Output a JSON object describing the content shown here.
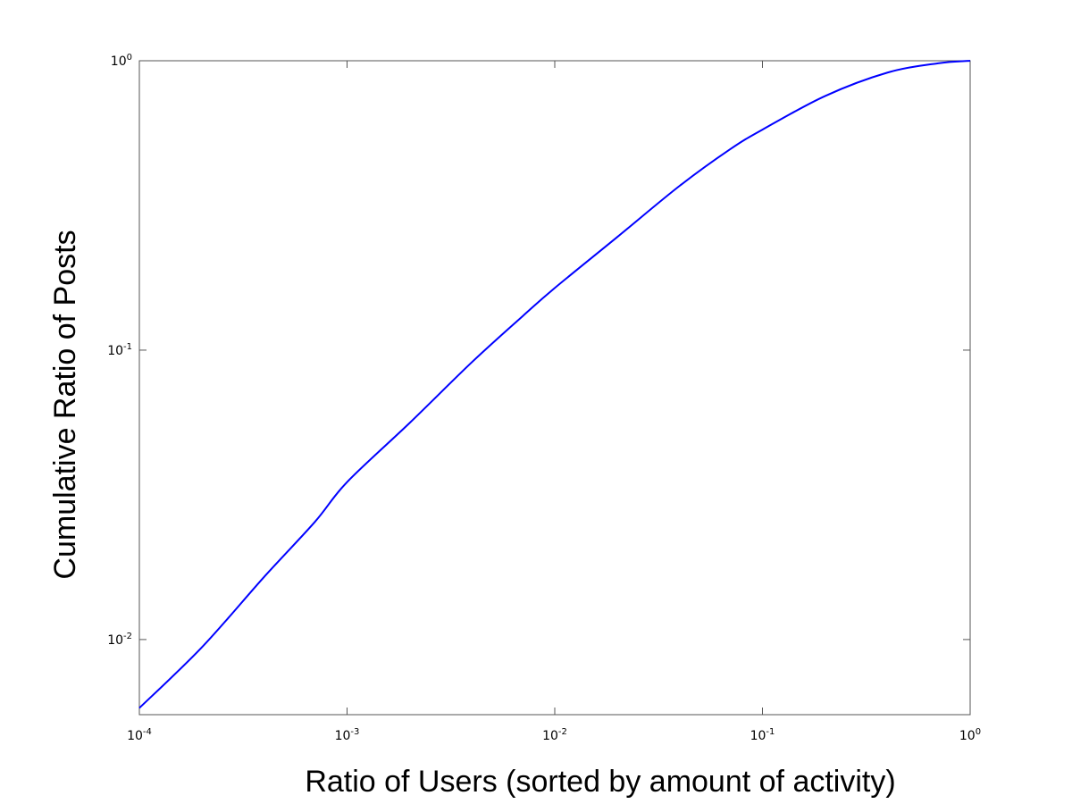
{
  "chart_data": {
    "type": "line",
    "title": "",
    "xlabel": "Ratio of Users (sorted by amount of activity)",
    "ylabel": "Cumulative Ratio of Posts",
    "x_scale": "log",
    "y_scale": "log",
    "xlim": [
      0.0001,
      1
    ],
    "ylim": [
      0.0055,
      1
    ],
    "x_ticks": [
      {
        "base": "10",
        "exp": "-4",
        "value": 0.0001
      },
      {
        "base": "10",
        "exp": "-3",
        "value": 0.001
      },
      {
        "base": "10",
        "exp": "-2",
        "value": 0.01
      },
      {
        "base": "10",
        "exp": "-1",
        "value": 0.1
      },
      {
        "base": "10",
        "exp": "0",
        "value": 1
      }
    ],
    "y_ticks": [
      {
        "base": "10",
        "exp": "-2",
        "value": 0.01
      },
      {
        "base": "10",
        "exp": "-1",
        "value": 0.1
      },
      {
        "base": "10",
        "exp": "0",
        "value": 1
      }
    ],
    "grid": false,
    "legend": "none",
    "series": [
      {
        "color": "#0000ff",
        "x": [
          0.0001,
          0.0002,
          0.0004,
          0.0007,
          0.001,
          0.002,
          0.004,
          0.007,
          0.01,
          0.02,
          0.04,
          0.07,
          0.1,
          0.2,
          0.4,
          0.7,
          1.0
        ],
        "y": [
          0.0058,
          0.0094,
          0.0165,
          0.0255,
          0.035,
          0.056,
          0.091,
          0.131,
          0.164,
          0.246,
          0.37,
          0.495,
          0.578,
          0.755,
          0.91,
          0.98,
          1.0
        ]
      }
    ]
  }
}
